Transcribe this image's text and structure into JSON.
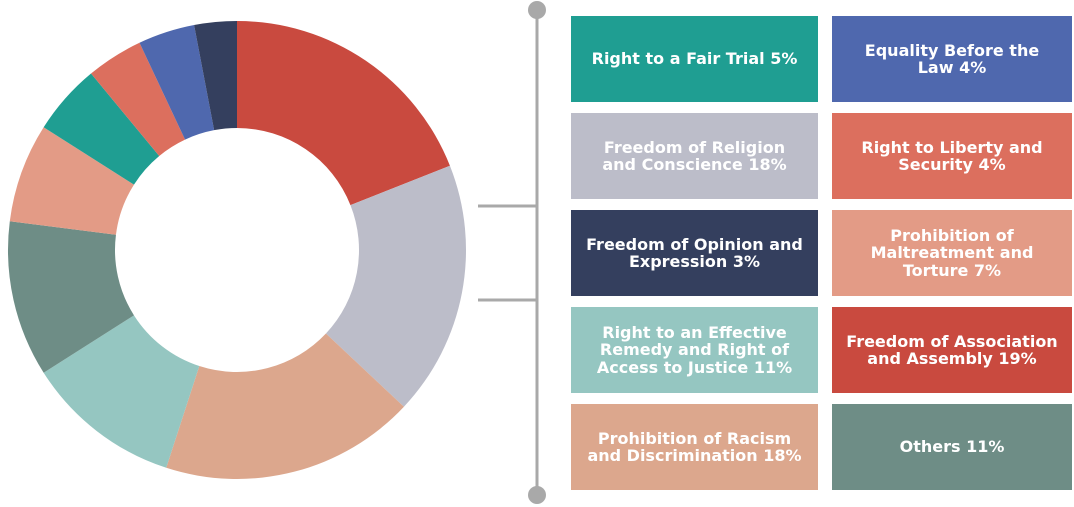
{
  "chart_data": {
    "type": "pie",
    "donut": true,
    "categories": [
      "Freedom of Association and Assembly",
      "Freedom of Religion and Conscience",
      "Prohibition of Racism and Discrimination",
      "Right to an Effective Remedy and Right of Access to Justice",
      "Others",
      "Prohibition of Maltreatment and Torture",
      "Right to a Fair Trial",
      "Right to Liberty and Security",
      "Equality Before the Law",
      "Freedom of Opinion and Expression"
    ],
    "values": [
      19,
      18,
      18,
      11,
      11,
      7,
      5,
      4,
      4,
      3
    ],
    "value_labels": [
      "19%",
      "18%",
      "18%",
      "11%",
      "11%",
      "7%",
      "5%",
      "4%",
      "4%",
      "3%"
    ],
    "colors": [
      "#c94a3f",
      "#bcbdc9",
      "#dca78d",
      "#95c6c1",
      "#6e8d86",
      "#e39b86",
      "#1f9e92",
      "#dc6f5e",
      "#4f68ae",
      "#343f5e"
    ]
  }
}
